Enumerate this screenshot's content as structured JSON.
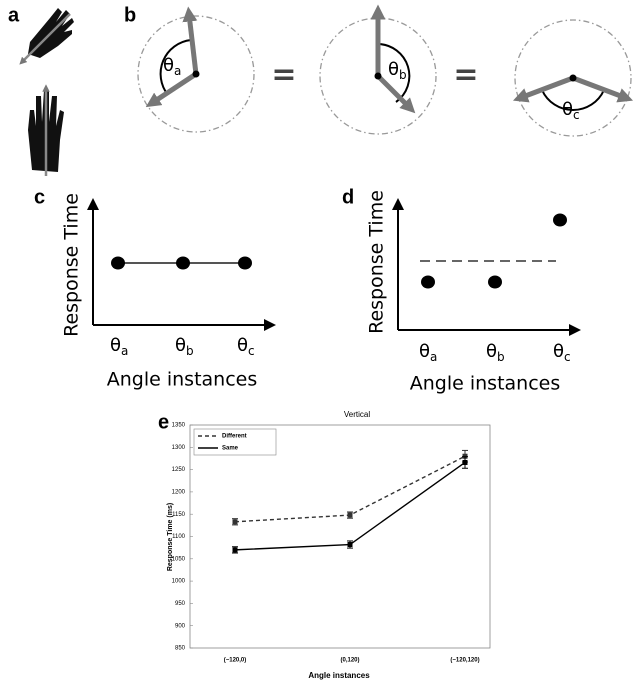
{
  "panels": {
    "a": {
      "label": "a"
    },
    "b": {
      "label": "b",
      "angles": [
        {
          "base": "θ",
          "sub": "a"
        },
        {
          "base": "θ",
          "sub": "b"
        },
        {
          "base": "θ",
          "sub": "c"
        }
      ],
      "equals": [
        "=",
        "="
      ]
    },
    "c": {
      "label": "c",
      "y_label": "Response Time",
      "x_label": "Angle instances",
      "x_ticks": [
        {
          "base": "θ",
          "sub": "a"
        },
        {
          "base": "θ",
          "sub": "b"
        },
        {
          "base": "θ",
          "sub": "c"
        }
      ]
    },
    "d": {
      "label": "d",
      "y_label": "Response Time",
      "x_label": "Angle instances",
      "x_ticks": [
        {
          "base": "θ",
          "sub": "a"
        },
        {
          "base": "θ",
          "sub": "b"
        },
        {
          "base": "θ",
          "sub": "c"
        }
      ]
    }
  },
  "chart_data": {
    "panel_label": "e",
    "type": "line",
    "title": "Vertical",
    "x_label": "Angle instances",
    "y_label": "Response Time (ms)",
    "categories": [
      "(−120,0)",
      "(0,120)",
      "(−120,120)"
    ],
    "ylim": [
      850,
      1350
    ],
    "yticks": [
      850,
      900,
      950,
      1000,
      1050,
      1100,
      1150,
      1200,
      1250,
      1300,
      1350
    ],
    "legend": "top-left",
    "series": [
      {
        "name": "Different",
        "color": "#333333",
        "style": "dashed",
        "values": [
          1133,
          1148,
          1280
        ],
        "errors": [
          7,
          7,
          13
        ]
      },
      {
        "name": "Same",
        "color": "#000000",
        "style": "solid",
        "values": [
          1070,
          1082,
          1266
        ],
        "errors": [
          7,
          8,
          13
        ]
      }
    ]
  }
}
